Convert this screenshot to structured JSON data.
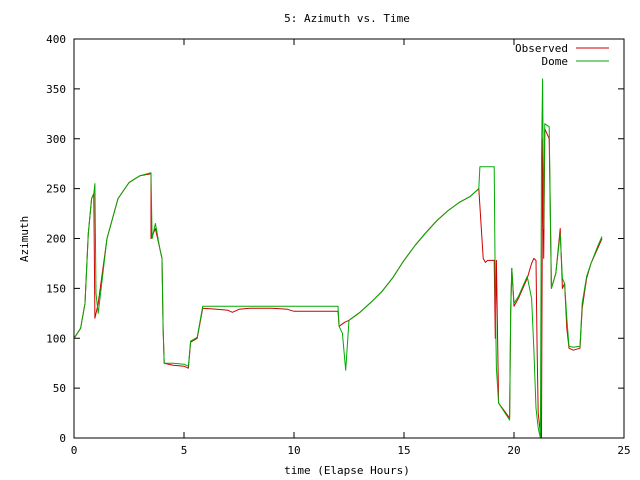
{
  "chart_data": {
    "type": "line",
    "title": "5: Azimuth vs. Time",
    "xlabel": "time (Elapse Hours)",
    "ylabel": "Azimuth",
    "xlim": [
      0,
      25
    ],
    "ylim": [
      0,
      400
    ],
    "xticks": [
      0,
      5,
      10,
      15,
      20,
      25
    ],
    "yticks": [
      0,
      50,
      100,
      150,
      200,
      250,
      300,
      350,
      400
    ],
    "grid": false,
    "legend_position": "top-right",
    "series": [
      {
        "name": "Observed",
        "color": "#cc0000",
        "points": [
          [
            0,
            100
          ],
          [
            0.3,
            110
          ],
          [
            0.5,
            135
          ],
          [
            0.65,
            205
          ],
          [
            0.8,
            240
          ],
          [
            0.9,
            245
          ],
          [
            0.95,
            120
          ],
          [
            1.1,
            135
          ],
          [
            1.5,
            200
          ],
          [
            2.0,
            240
          ],
          [
            2.5,
            256
          ],
          [
            3.0,
            263
          ],
          [
            3.5,
            265
          ],
          [
            3.5,
            200
          ],
          [
            3.7,
            210
          ],
          [
            3.9,
            190
          ],
          [
            4.0,
            180
          ],
          [
            4.05,
            110
          ],
          [
            4.1,
            75
          ],
          [
            4.5,
            73
          ],
          [
            5.0,
            72
          ],
          [
            5.2,
            70
          ],
          [
            5.3,
            96
          ],
          [
            5.6,
            100
          ],
          [
            5.85,
            130
          ],
          [
            6.5,
            129
          ],
          [
            7.0,
            128
          ],
          [
            7.2,
            126
          ],
          [
            7.5,
            129
          ],
          [
            8.0,
            130
          ],
          [
            9.0,
            130
          ],
          [
            9.7,
            129
          ],
          [
            10.0,
            127
          ],
          [
            11.0,
            127
          ],
          [
            11.5,
            127
          ],
          [
            12.0,
            127
          ],
          [
            12.05,
            112
          ],
          [
            12.3,
            116
          ],
          [
            12.5,
            118
          ],
          [
            13.0,
            126
          ],
          [
            13.5,
            136
          ],
          [
            14.0,
            147
          ],
          [
            14.5,
            161
          ],
          [
            15.0,
            178
          ],
          [
            15.5,
            193
          ],
          [
            16.0,
            206
          ],
          [
            16.5,
            218
          ],
          [
            17.0,
            228
          ],
          [
            17.5,
            236
          ],
          [
            18.0,
            242
          ],
          [
            18.4,
            250
          ],
          [
            18.6,
            180
          ],
          [
            18.7,
            176
          ],
          [
            18.8,
            178
          ],
          [
            19.1,
            178
          ],
          [
            19.15,
            100
          ],
          [
            19.2,
            178
          ],
          [
            19.3,
            35
          ],
          [
            19.8,
            20
          ],
          [
            19.85,
            125
          ],
          [
            19.9,
            170
          ],
          [
            20.0,
            132
          ],
          [
            20.2,
            140
          ],
          [
            20.4,
            150
          ],
          [
            20.6,
            160
          ],
          [
            20.8,
            175
          ],
          [
            20.9,
            180
          ],
          [
            21.0,
            178
          ],
          [
            21.05,
            90
          ],
          [
            21.1,
            25
          ],
          [
            21.2,
            5
          ],
          [
            21.25,
            0
          ],
          [
            21.3,
            300
          ],
          [
            21.35,
            180
          ],
          [
            21.4,
            310
          ],
          [
            21.6,
            300
          ],
          [
            21.7,
            150
          ],
          [
            21.9,
            165
          ],
          [
            22.1,
            210
          ],
          [
            22.2,
            150
          ],
          [
            22.3,
            155
          ],
          [
            22.4,
            110
          ],
          [
            22.5,
            90
          ],
          [
            22.7,
            88
          ],
          [
            23.0,
            90
          ],
          [
            23.1,
            130
          ],
          [
            23.3,
            160
          ],
          [
            23.5,
            175
          ],
          [
            23.8,
            190
          ],
          [
            24.0,
            200
          ]
        ]
      },
      {
        "name": "Dome",
        "color": "#00aa00",
        "points": [
          [
            0,
            100
          ],
          [
            0.3,
            110
          ],
          [
            0.5,
            135
          ],
          [
            0.65,
            205
          ],
          [
            0.8,
            240
          ],
          [
            0.9,
            245
          ],
          [
            0.95,
            255
          ],
          [
            1.0,
            145
          ],
          [
            1.1,
            125
          ],
          [
            1.5,
            200
          ],
          [
            2.0,
            240
          ],
          [
            2.5,
            256
          ],
          [
            3.0,
            263
          ],
          [
            3.5,
            266
          ],
          [
            3.55,
            200
          ],
          [
            3.7,
            215
          ],
          [
            3.9,
            190
          ],
          [
            4.0,
            180
          ],
          [
            4.05,
            110
          ],
          [
            4.1,
            75
          ],
          [
            4.5,
            75
          ],
          [
            5.0,
            74
          ],
          [
            5.2,
            72
          ],
          [
            5.3,
            97
          ],
          [
            5.6,
            101
          ],
          [
            5.85,
            132
          ],
          [
            6.5,
            132
          ],
          [
            7.0,
            132
          ],
          [
            7.5,
            132
          ],
          [
            8.0,
            132
          ],
          [
            9.0,
            132
          ],
          [
            10.0,
            132
          ],
          [
            11.0,
            132
          ],
          [
            11.5,
            132
          ],
          [
            12.0,
            132
          ],
          [
            12.05,
            112
          ],
          [
            12.2,
            105
          ],
          [
            12.35,
            68
          ],
          [
            12.5,
            118
          ],
          [
            13.0,
            126
          ],
          [
            13.5,
            136
          ],
          [
            14.0,
            147
          ],
          [
            14.5,
            161
          ],
          [
            15.0,
            178
          ],
          [
            15.5,
            193
          ],
          [
            16.0,
            206
          ],
          [
            16.5,
            218
          ],
          [
            17.0,
            228
          ],
          [
            17.5,
            236
          ],
          [
            18.0,
            242
          ],
          [
            18.4,
            250
          ],
          [
            18.45,
            272
          ],
          [
            18.7,
            272
          ],
          [
            19.1,
            272
          ],
          [
            19.15,
            145
          ],
          [
            19.2,
            70
          ],
          [
            19.3,
            35
          ],
          [
            19.8,
            18
          ],
          [
            19.85,
            130
          ],
          [
            19.9,
            170
          ],
          [
            20.0,
            135
          ],
          [
            20.2,
            142
          ],
          [
            20.4,
            152
          ],
          [
            20.6,
            162
          ],
          [
            20.8,
            140
          ],
          [
            20.9,
            90
          ],
          [
            21.0,
            30
          ],
          [
            21.1,
            10
          ],
          [
            21.2,
            0
          ],
          [
            21.25,
            280
          ],
          [
            21.3,
            360
          ],
          [
            21.35,
            210
          ],
          [
            21.4,
            315
          ],
          [
            21.6,
            312
          ],
          [
            21.7,
            150
          ],
          [
            21.9,
            165
          ],
          [
            22.1,
            205
          ],
          [
            22.2,
            160
          ],
          [
            22.3,
            155
          ],
          [
            22.4,
            120
          ],
          [
            22.5,
            92
          ],
          [
            22.7,
            91
          ],
          [
            23.0,
            92
          ],
          [
            23.1,
            135
          ],
          [
            23.3,
            162
          ],
          [
            23.5,
            175
          ],
          [
            23.8,
            192
          ],
          [
            24.0,
            202
          ]
        ]
      }
    ]
  }
}
